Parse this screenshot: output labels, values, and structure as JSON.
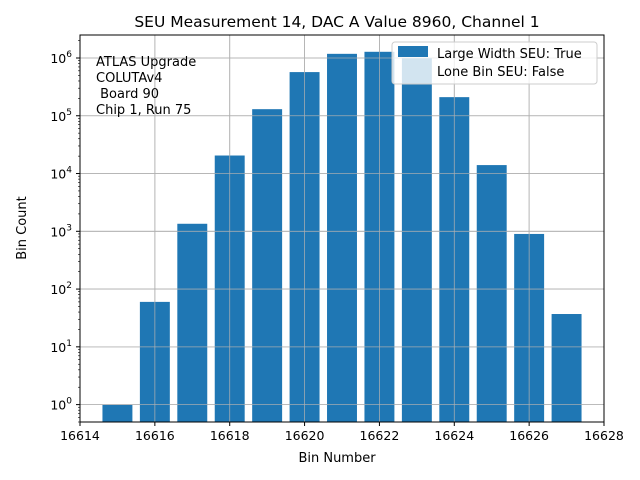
{
  "chart_data": {
    "type": "bar",
    "title": "SEU Measurement 14, DAC A Value 8960, Channel 1",
    "xlabel": "Bin Number",
    "ylabel": "Bin Count",
    "yscale": "log",
    "xlim": [
      16614,
      16628
    ],
    "ylim": [
      0.5,
      2500000
    ],
    "grid": true,
    "x_ticks": [
      16614,
      16616,
      16618,
      16620,
      16622,
      16624,
      16626,
      16628
    ],
    "y_ticks": [
      1,
      10,
      100,
      1000,
      10000,
      100000,
      1000000
    ],
    "y_tick_labels": [
      {
        "base": "10",
        "exp": "0"
      },
      {
        "base": "10",
        "exp": "1"
      },
      {
        "base": "10",
        "exp": "2"
      },
      {
        "base": "10",
        "exp": "3"
      },
      {
        "base": "10",
        "exp": "4"
      },
      {
        "base": "10",
        "exp": "5"
      },
      {
        "base": "10",
        "exp": "6"
      }
    ],
    "bar_color": "#1f77b4",
    "bars": [
      {
        "x": 16615,
        "value": 1
      },
      {
        "x": 16616,
        "value": 60
      },
      {
        "x": 16617,
        "value": 1350
      },
      {
        "x": 16618,
        "value": 20500
      },
      {
        "x": 16619,
        "value": 130000
      },
      {
        "x": 16620,
        "value": 570000
      },
      {
        "x": 16621,
        "value": 1180000
      },
      {
        "x": 16622,
        "value": 1280000
      },
      {
        "x": 16623,
        "value": 1000000
      },
      {
        "x": 16624,
        "value": 210000
      },
      {
        "x": 16625,
        "value": 14000
      },
      {
        "x": 16626,
        "value": 900
      },
      {
        "x": 16627,
        "value": 37
      }
    ],
    "annotation_lines": [
      "ATLAS Upgrade",
      "COLUTAv4",
      " Board 90",
      "Chip 1, Run 75"
    ],
    "legend": {
      "placement": "top-right",
      "entries": [
        "Large Width SEU: True",
        "Lone Bin SEU: False"
      ]
    }
  }
}
